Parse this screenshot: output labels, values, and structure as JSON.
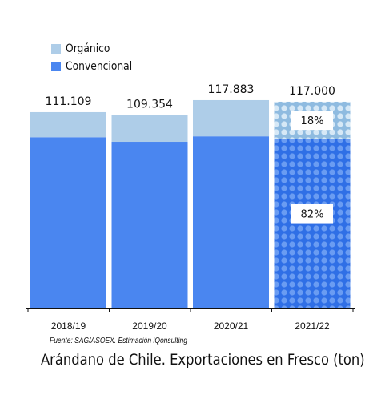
{
  "legend": {
    "organic_label": "Orgánico",
    "conventional_label": "Convencional"
  },
  "colors": {
    "organic": "#aecde8",
    "conventional": "#4a86f0",
    "axis": "#111111"
  },
  "chart_data": {
    "type": "bar",
    "stacked": true,
    "categories": [
      "2018/19",
      "2019/20",
      "2020/21",
      "2021/22"
    ],
    "totals": [
      111.109,
      109.354,
      117.883,
      117.0
    ],
    "total_labels": [
      "111.109",
      "109.354",
      "117.883",
      "117.000"
    ],
    "series": [
      {
        "name": "Convencional",
        "values": [
          96.9,
          94.3,
          97.4,
          95.9
        ]
      },
      {
        "name": "Orgánico",
        "values": [
          14.2,
          15.1,
          20.5,
          21.1
        ]
      }
    ],
    "patterned_categories": [
      "2021/22"
    ],
    "share_labels": {
      "organic": "18%",
      "conventional": "82%"
    },
    "ylim": [
      0,
      120
    ]
  },
  "source": "Fuente: SAG/ASOEX. Estimación iQonsulting",
  "title": "Arándano de Chile. Exportaciones en Fresco (ton)"
}
